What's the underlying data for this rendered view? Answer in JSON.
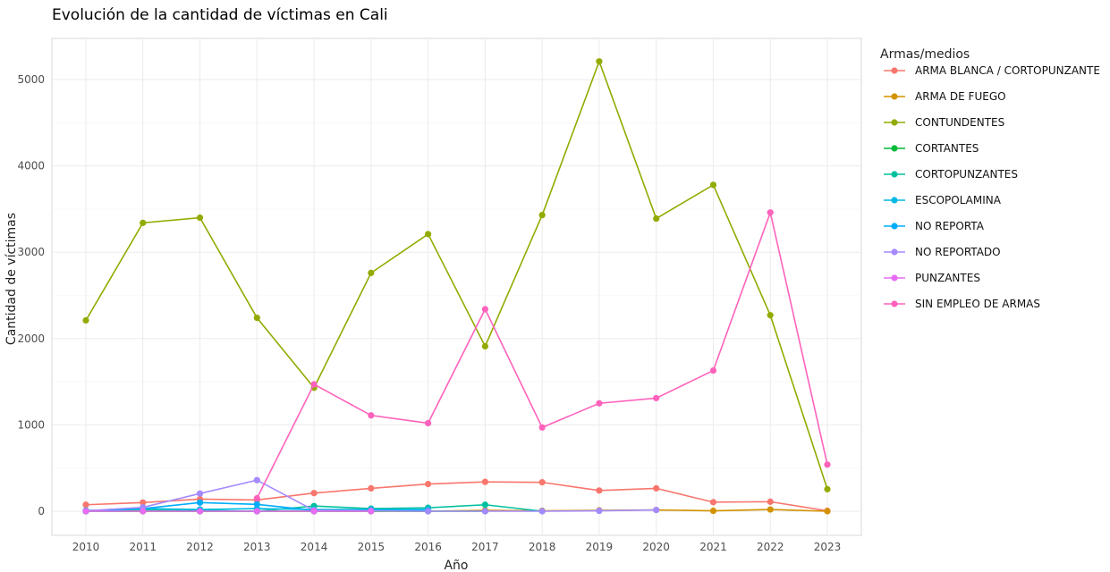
{
  "chart_data": {
    "type": "line",
    "title": "Evolución de la cantidad de víctimas en Cali",
    "xlabel": "Año",
    "ylabel": "Cantidad de víctimas",
    "legend_title": "Armas/medios",
    "legend_position": "right",
    "grid": true,
    "ylim": [
      0,
      5000
    ],
    "yticks": [
      0,
      1000,
      2000,
      3000,
      4000,
      5000
    ],
    "x": [
      2010,
      2011,
      2012,
      2013,
      2014,
      2015,
      2016,
      2017,
      2018,
      2019,
      2020,
      2021,
      2022,
      2023
    ],
    "series": [
      {
        "name": "ARMA BLANCA / CORTOPUNZANTE",
        "color": "#F8766D",
        "values": [
          75,
          100,
          140,
          130,
          210,
          265,
          315,
          340,
          335,
          240,
          265,
          105,
          110,
          5
        ]
      },
      {
        "name": "ARMA DE FUEGO",
        "color": "#D39200",
        "values": [
          0,
          0,
          0,
          0,
          0,
          0,
          0,
          10,
          5,
          10,
          15,
          5,
          20,
          0
        ]
      },
      {
        "name": "CONTUNDENTES",
        "color": "#93AA00",
        "values": [
          2210,
          3340,
          3400,
          2240,
          1430,
          2760,
          3210,
          1910,
          3430,
          5210,
          3390,
          3780,
          2270,
          255
        ]
      },
      {
        "name": "CORTANTES",
        "color": "#00BA38",
        "values": [
          0,
          0,
          0,
          0,
          0,
          0,
          0,
          0,
          null,
          null,
          null,
          null,
          null,
          null
        ]
      },
      {
        "name": "CORTOPUNZANTES",
        "color": "#00C19F",
        "values": [
          10,
          20,
          10,
          0,
          60,
          30,
          40,
          75,
          0,
          null,
          null,
          null,
          null,
          null
        ]
      },
      {
        "name": "ESCOPOLAMINA",
        "color": "#00B9E3",
        "values": [
          5,
          30,
          20,
          30,
          20,
          20,
          20,
          null,
          null,
          null,
          null,
          null,
          null,
          null
        ]
      },
      {
        "name": "NO REPORTA",
        "color": "#00ADFA",
        "values": [
          0,
          30,
          100,
          80,
          10,
          10,
          10,
          null,
          null,
          null,
          null,
          null,
          null,
          null
        ]
      },
      {
        "name": "NO REPORTADO",
        "color": "#A58AFF",
        "values": [
          5,
          45,
          205,
          360,
          10,
          5,
          0,
          0,
          0,
          5,
          15,
          null,
          null,
          null
        ]
      },
      {
        "name": "PUNZANTES",
        "color": "#E76BF3",
        "values": [
          0,
          0,
          0,
          0,
          0,
          0,
          null,
          null,
          null,
          null,
          null,
          null,
          null,
          null
        ]
      },
      {
        "name": "SIN EMPLEO DE ARMAS",
        "color": "#FF62BC",
        "values": [
          null,
          null,
          null,
          150,
          1470,
          1110,
          1020,
          2340,
          970,
          1250,
          1310,
          1630,
          3460,
          540
        ]
      }
    ]
  }
}
